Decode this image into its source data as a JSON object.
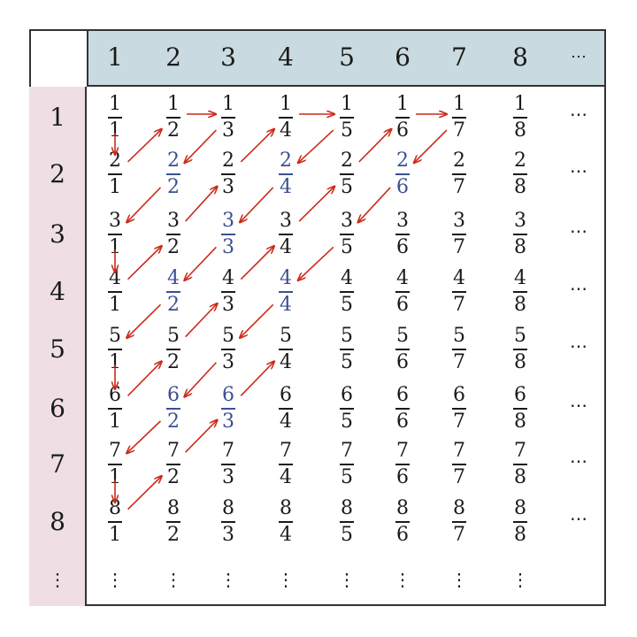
{
  "column_headers": [
    "1",
    "2",
    "3",
    "4",
    "5",
    "6",
    "7",
    "8",
    "⋯"
  ],
  "row_headers": [
    "1",
    "2",
    "3",
    "4",
    "5",
    "6",
    "7",
    "8",
    "⋮"
  ],
  "numerators": [
    "1",
    "2",
    "3",
    "4",
    "5",
    "6",
    "7",
    "8"
  ],
  "denominators": [
    "1",
    "2",
    "3",
    "4",
    "5",
    "6",
    "7",
    "8"
  ],
  "row_ellipsis": "⋯",
  "col_ellipsis": "⋮",
  "duplicate_fractions": [
    "2/2",
    "2/4",
    "2/6",
    "3/3",
    "4/2",
    "4/4",
    "6/2",
    "6/3"
  ],
  "enumeration_path": [
    "1/1",
    "2/1",
    "1/2",
    "1/3",
    "2/2",
    "3/1",
    "4/1",
    "3/2",
    "2/3",
    "1/4",
    "1/5",
    "2/4",
    "3/3",
    "4/2",
    "5/1",
    "6/1",
    "5/2",
    "4/3",
    "3/4",
    "2/5",
    "1/6",
    "1/7",
    "2/6",
    "3/5",
    "4/4",
    "5/3",
    "6/2",
    "7/1",
    "8/1",
    "7/2",
    "6/3",
    "5/4"
  ],
  "colors": {
    "header_row": "#c9dbe0",
    "header_column": "#efdfe5",
    "duplicate_text": "#3b4f92",
    "arrow": "#cc2a1a",
    "text": "#1a1a1a"
  }
}
